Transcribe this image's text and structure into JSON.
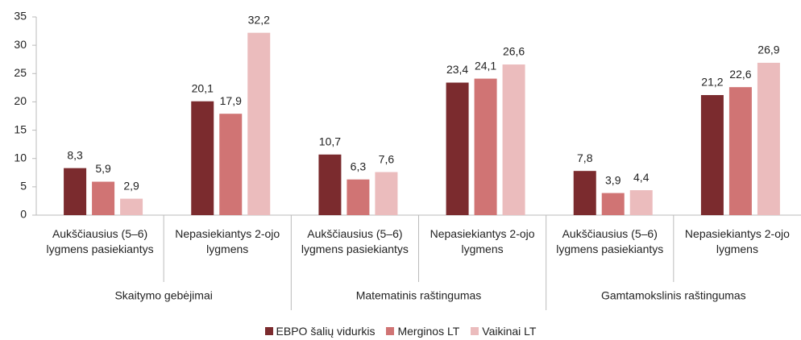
{
  "chart_data": {
    "type": "bar",
    "categories": [
      "Aukščiausius (5–6) lygmens pasiekiantys",
      "Nepasiekiantys 2-ojo lygmens",
      "Aukščiausius (5–6) lygmens pasiekiantys",
      "Nepasiekiantys 2-ojo lygmens",
      "Aukščiausius (5–6) lygmens pasiekiantys",
      "Nepasiekiantys 2-ojo lygmens"
    ],
    "groups": [
      "Skaitymo gebėjimai",
      "Matematinis raštingumas",
      "Gamtamokslinis raštingumas"
    ],
    "series": [
      {
        "name": "EBPO šalių vidurkis",
        "color": "#7b2b2e",
        "values": [
          8.3,
          20.1,
          10.7,
          23.4,
          7.8,
          21.2
        ],
        "value_labels": [
          "8,3",
          "20,1",
          "10,7",
          "23,4",
          "7,8",
          "21,2"
        ]
      },
      {
        "name": "Merginos LT",
        "color": "#d07474",
        "values": [
          5.9,
          17.9,
          6.3,
          24.1,
          3.9,
          22.6
        ],
        "value_labels": [
          "5,9",
          "17,9",
          "6,3",
          "24,1",
          "3,9",
          "22,6"
        ]
      },
      {
        "name": "Vaikinai LT",
        "color": "#ebbcbd",
        "values": [
          2.9,
          32.2,
          7.6,
          26.6,
          4.4,
          26.9
        ],
        "value_labels": [
          "2,9",
          "32,2",
          "7,6",
          "26,6",
          "4,4",
          "26,9"
        ]
      }
    ],
    "ylim": [
      0,
      35
    ],
    "yticks": [
      0,
      5,
      10,
      15,
      20,
      25,
      30,
      35
    ],
    "grid": false,
    "legend": "bottom"
  }
}
